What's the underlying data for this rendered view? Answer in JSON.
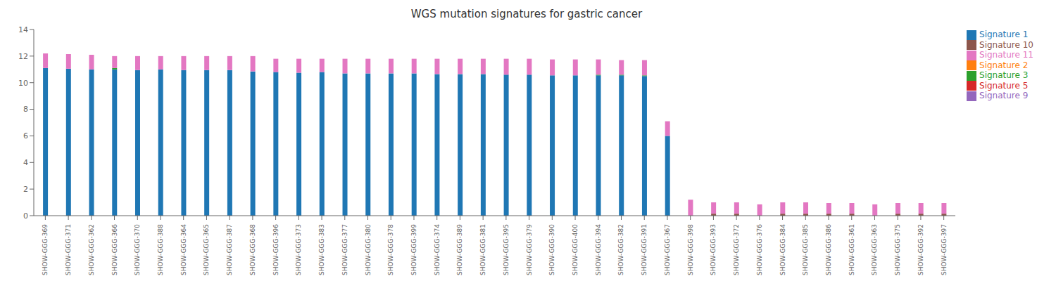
{
  "chart_data": {
    "type": "bar",
    "title": "WGS mutation signatures for gastric cancer",
    "stacked": true,
    "grid": false,
    "legend": "upper right",
    "categories": [
      "SHOW-GGG-369",
      "SHOW-GGG-371",
      "SHOW-GGG-362",
      "SHOW-GGG-366",
      "SHOW-GGG-370",
      "SHOW-GGG-388",
      "SHOW-GGG-364",
      "SHOW-GGG-365",
      "SHOW-GGG-387",
      "SHOW-GGG-368",
      "SHOW-GGG-396",
      "SHOW-GGG-373",
      "SHOW-GGG-383",
      "SHOW-GGG-377",
      "SHOW-GGG-380",
      "SHOW-GGG-378",
      "SHOW-GGG-399",
      "SHOW-GGG-374",
      "SHOW-GGG-389",
      "SHOW-GGG-381",
      "SHOW-GGG-395",
      "SHOW-GGG-379",
      "SHOW-GGG-390",
      "SHOW-GGG-400",
      "SHOW-GGG-394",
      "SHOW-GGG-382",
      "SHOW-GGG-391",
      "SHOW-GGG-367",
      "SHOW-GGG-398",
      "SHOW-GGG-393",
      "SHOW-GGG-372",
      "SHOW-GGG-376",
      "SHOW-GGG-384",
      "SHOW-GGG-385",
      "SHOW-GGG-386",
      "SHOW-GGG-361",
      "SHOW-GGG-363",
      "SHOW-GGG-375",
      "SHOW-GGG-392",
      "SHOW-GGG-397"
    ],
    "series": [
      {
        "name": "Signature 1",
        "color": "#1f77b4",
        "values": [
          11.1,
          11.05,
          11.0,
          11.0,
          10.95,
          11.0,
          10.95,
          10.95,
          10.95,
          10.85,
          10.8,
          10.75,
          10.8,
          10.7,
          10.7,
          10.7,
          10.7,
          10.65,
          10.65,
          10.65,
          10.6,
          10.6,
          10.55,
          10.55,
          10.55,
          10.55,
          10.5,
          6.0,
          0.0,
          0.0,
          0.0,
          0.0,
          0.0,
          0.0,
          0.0,
          0.0,
          0.0,
          0.0,
          0.0,
          0.0
        ]
      },
      {
        "name": "Signature 2",
        "color": "#ff7f0e",
        "values": [
          0.0,
          0.0,
          0.0,
          0.0,
          0.0,
          0.0,
          0.0,
          0.0,
          0.0,
          0.0,
          0.0,
          0.0,
          0.0,
          0.0,
          0.0,
          0.0,
          0.0,
          0.0,
          0.0,
          0.0,
          0.0,
          0.0,
          0.0,
          0.0,
          0.0,
          0.0,
          0.0,
          0.0,
          0.0,
          0.0,
          0.0,
          0.0,
          0.0,
          0.0,
          0.0,
          0.0,
          0.0,
          0.0,
          0.0,
          0.0
        ]
      },
      {
        "name": "Signature 3",
        "color": "#2ca02c",
        "values": [
          0.0,
          0.0,
          0.0,
          0.1,
          0.0,
          0.0,
          0.0,
          0.0,
          0.0,
          0.0,
          0.0,
          0.0,
          0.0,
          0.0,
          0.0,
          0.0,
          0.0,
          0.0,
          0.0,
          0.0,
          0.0,
          0.0,
          0.0,
          0.0,
          0.05,
          0.05,
          0.05,
          0.0,
          0.0,
          0.0,
          0.0,
          0.0,
          0.0,
          0.0,
          0.0,
          0.0,
          0.0,
          0.0,
          0.0,
          0.0
        ]
      },
      {
        "name": "Signature 5",
        "color": "#d62728",
        "values": [
          0.0,
          0.0,
          0.0,
          0.0,
          0.0,
          0.0,
          0.0,
          0.0,
          0.0,
          0.0,
          0.0,
          0.0,
          0.0,
          0.0,
          0.0,
          0.0,
          0.0,
          0.0,
          0.0,
          0.0,
          0.0,
          0.0,
          0.0,
          0.0,
          0.0,
          0.0,
          0.0,
          0.0,
          0.0,
          0.0,
          0.0,
          0.0,
          0.0,
          0.0,
          0.0,
          0.0,
          0.0,
          0.0,
          0.0,
          0.0
        ]
      },
      {
        "name": "Signature 9",
        "color": "#9467bd",
        "values": [
          0.0,
          0.0,
          0.0,
          0.0,
          0.0,
          0.0,
          0.0,
          0.0,
          0.0,
          0.0,
          0.0,
          0.0,
          0.0,
          0.0,
          0.0,
          0.0,
          0.0,
          0.0,
          0.0,
          0.0,
          0.0,
          0.0,
          0.0,
          0.0,
          0.0,
          0.0,
          0.0,
          0.0,
          0.0,
          0.0,
          0.0,
          0.0,
          0.0,
          0.0,
          0.0,
          0.0,
          0.0,
          0.0,
          0.0,
          0.0
        ]
      },
      {
        "name": "Signature 10",
        "color": "#8c564b",
        "values": [
          0.0,
          0.0,
          0.0,
          0.0,
          0.0,
          0.0,
          0.0,
          0.0,
          0.0,
          0.0,
          0.0,
          0.0,
          0.0,
          0.0,
          0.0,
          0.0,
          0.0,
          0.0,
          0.0,
          0.0,
          0.0,
          0.0,
          0.0,
          0.0,
          0.0,
          0.0,
          0.0,
          0.0,
          0.0,
          0.15,
          0.15,
          0.0,
          0.15,
          0.15,
          0.15,
          0.15,
          0.0,
          0.15,
          0.15,
          0.15
        ]
      },
      {
        "name": "Signature 11",
        "color": "#e377c2",
        "values": [
          1.1,
          1.1,
          1.1,
          0.9,
          1.05,
          1.0,
          1.05,
          1.05,
          1.05,
          1.15,
          1.0,
          1.05,
          1.0,
          1.1,
          1.1,
          1.1,
          1.1,
          1.15,
          1.15,
          1.15,
          1.2,
          1.2,
          1.2,
          1.2,
          1.15,
          1.1,
          1.15,
          1.1,
          1.2,
          0.85,
          0.85,
          0.85,
          0.85,
          0.85,
          0.8,
          0.8,
          0.85,
          0.8,
          0.8,
          0.8
        ]
      }
    ],
    "ylim": [
      0,
      14
    ],
    "yticks": [
      0,
      2,
      4,
      6,
      8,
      10,
      12,
      14
    ]
  }
}
